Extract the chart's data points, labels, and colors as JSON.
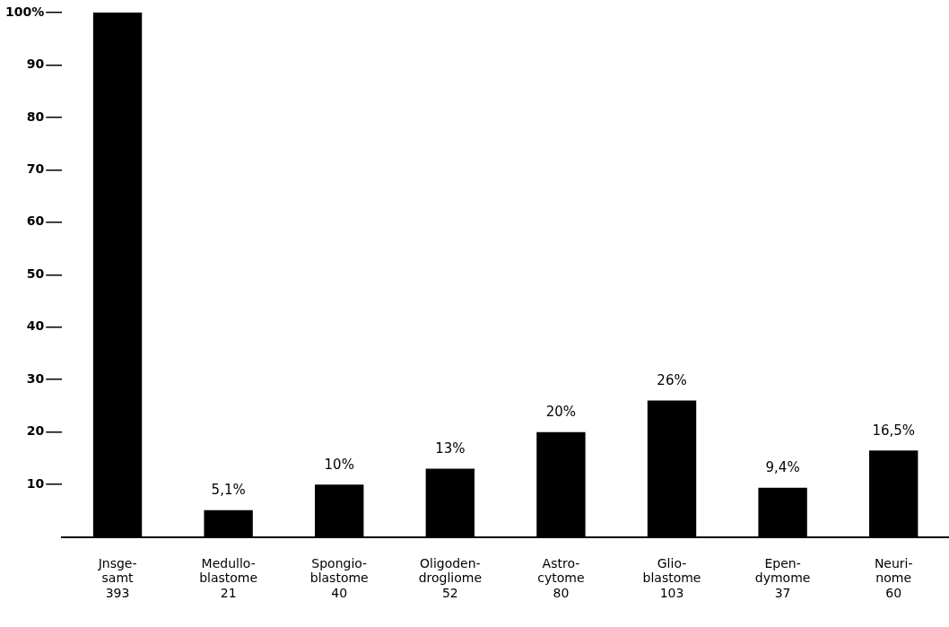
{
  "chart_data": {
    "type": "bar",
    "categories": [
      "Jnsge-\nsamt\n393",
      "Medullo-\nblastome\n21",
      "Spongio-\nblastome\n40",
      "Oligoden-\ndrogliome\n52",
      "Astro-\ncytome\n80",
      "Glio-\nblastome\n103",
      "Epen-\ndymome\n37",
      "Neuri-\nnome\n60"
    ],
    "values": [
      100,
      5.1,
      10,
      13,
      20,
      26,
      9.4,
      16.5
    ],
    "value_labels": [
      null,
      "5,1%",
      "10%",
      "13%",
      "20%",
      "26%",
      "9,4%",
      "16,5%"
    ],
    "color": "#000000",
    "ylim": [
      0,
      100
    ],
    "yticks": [
      10,
      20,
      30,
      40,
      50,
      60,
      70,
      80,
      90,
      {
        "value": 100,
        "label": "100%"
      }
    ],
    "grid": false,
    "legend": false
  }
}
